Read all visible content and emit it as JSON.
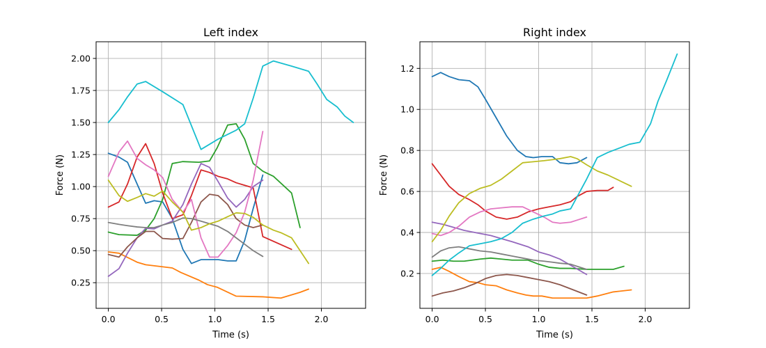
{
  "chart_data": [
    {
      "type": "line",
      "title": "Left index",
      "xlabel": "Time (s)",
      "ylabel": "Force (N)",
      "xlim": [
        -0.115,
        2.415
      ],
      "ylim": [
        0.05,
        2.13
      ],
      "xticks": [
        0.0,
        0.5,
        1.0,
        1.5,
        2.0
      ],
      "xtick_labels": [
        "0.0",
        "0.5",
        "1.0",
        "1.5",
        "2.0"
      ],
      "yticks": [
        0.25,
        0.5,
        0.75,
        1.0,
        1.25,
        1.5,
        1.75,
        2.0
      ],
      "ytick_labels": [
        "0.25",
        "0.50",
        "0.75",
        "1.00",
        "1.25",
        "1.50",
        "1.75",
        "2.00"
      ],
      "grid": true,
      "series": [
        {
          "color": "#1f77b4",
          "x": [
            0.0,
            0.1,
            0.18,
            0.27,
            0.35,
            0.43,
            0.51,
            0.6,
            0.7,
            0.78,
            0.87,
            0.95,
            1.03,
            1.12,
            1.2,
            1.28,
            1.36,
            1.45
          ],
          "y": [
            1.26,
            1.23,
            1.19,
            1.02,
            0.87,
            0.89,
            0.88,
            0.75,
            0.51,
            0.4,
            0.43,
            0.43,
            0.43,
            0.42,
            0.42,
            0.58,
            0.83,
            1.09
          ]
        },
        {
          "color": "#ff7f0e",
          "x": [
            0.0,
            0.1,
            0.27,
            0.35,
            0.5,
            0.6,
            0.68,
            0.85,
            0.93,
            1.02,
            1.2,
            1.45,
            1.62,
            1.8,
            1.88
          ],
          "y": [
            0.49,
            0.48,
            0.41,
            0.39,
            0.375,
            0.365,
            0.33,
            0.27,
            0.235,
            0.215,
            0.145,
            0.14,
            0.13,
            0.175,
            0.2
          ]
        },
        {
          "color": "#2ca02c",
          "x": [
            0.0,
            0.1,
            0.27,
            0.35,
            0.43,
            0.51,
            0.6,
            0.7,
            0.85,
            0.95,
            1.02,
            1.12,
            1.2,
            1.28,
            1.36,
            1.45,
            1.55,
            1.72,
            1.8
          ],
          "y": [
            0.645,
            0.625,
            0.62,
            0.66,
            0.75,
            0.9,
            1.18,
            1.195,
            1.19,
            1.2,
            1.3,
            1.48,
            1.49,
            1.37,
            1.18,
            1.12,
            1.08,
            0.95,
            0.68
          ]
        },
        {
          "color": "#d62728",
          "x": [
            0.0,
            0.1,
            0.18,
            0.27,
            0.35,
            0.43,
            0.51,
            0.6,
            0.7,
            0.78,
            0.87,
            0.95,
            1.03,
            1.12,
            1.2,
            1.28,
            1.36,
            1.45,
            1.72
          ],
          "y": [
            0.84,
            0.88,
            1.02,
            1.23,
            1.335,
            1.18,
            0.95,
            0.75,
            0.78,
            0.93,
            1.13,
            1.11,
            1.08,
            1.06,
            1.03,
            1.01,
            0.99,
            0.61,
            0.51
          ]
        },
        {
          "color": "#9467bd",
          "x": [
            0.0,
            0.1,
            0.18,
            0.27,
            0.35,
            0.43,
            0.51,
            0.6,
            0.7,
            0.78,
            0.87,
            0.95,
            1.03,
            1.12,
            1.2,
            1.28,
            1.36,
            1.45
          ],
          "y": [
            0.3,
            0.36,
            0.48,
            0.6,
            0.675,
            0.67,
            0.7,
            0.73,
            0.86,
            1.02,
            1.18,
            1.15,
            1.04,
            0.91,
            0.84,
            0.9,
            1.0,
            1.05
          ]
        },
        {
          "color": "#8c564b",
          "x": [
            0.0,
            0.1,
            0.18,
            0.27,
            0.35,
            0.43,
            0.51,
            0.6,
            0.7,
            0.78,
            0.87,
            0.95,
            1.03,
            1.12,
            1.2,
            1.28,
            1.36,
            1.45
          ],
          "y": [
            0.47,
            0.45,
            0.53,
            0.6,
            0.65,
            0.65,
            0.595,
            0.59,
            0.595,
            0.72,
            0.88,
            0.94,
            0.93,
            0.86,
            0.75,
            0.7,
            0.68,
            0.7
          ]
        },
        {
          "color": "#e377c2",
          "x": [
            0.0,
            0.1,
            0.18,
            0.27,
            0.35,
            0.43,
            0.51,
            0.6,
            0.7,
            0.78,
            0.87,
            0.95,
            1.03,
            1.12,
            1.2,
            1.28,
            1.36,
            1.45
          ],
          "y": [
            1.08,
            1.27,
            1.355,
            1.22,
            1.17,
            1.13,
            1.07,
            0.9,
            0.8,
            0.9,
            0.6,
            0.45,
            0.45,
            0.54,
            0.64,
            0.8,
            1.05,
            1.43
          ]
        },
        {
          "color": "#7f7f7f",
          "x": [
            0.0,
            0.1,
            0.18,
            0.27,
            0.35,
            0.43,
            0.51,
            0.6,
            0.7,
            0.78,
            0.87,
            0.95,
            1.03,
            1.12,
            1.2,
            1.28,
            1.36,
            1.45
          ],
          "y": [
            0.72,
            0.705,
            0.695,
            0.685,
            0.68,
            0.68,
            0.7,
            0.72,
            0.755,
            0.75,
            0.73,
            0.71,
            0.69,
            0.65,
            0.6,
            0.55,
            0.5,
            0.455
          ]
        },
        {
          "color": "#bcbd22",
          "x": [
            0.0,
            0.1,
            0.18,
            0.27,
            0.35,
            0.43,
            0.51,
            0.6,
            0.7,
            0.78,
            0.87,
            0.95,
            1.03,
            1.12,
            1.2,
            1.28,
            1.36,
            1.45,
            1.55,
            1.62,
            1.72,
            1.8,
            1.88
          ],
          "y": [
            1.05,
            0.93,
            0.885,
            0.915,
            0.945,
            0.925,
            0.965,
            0.88,
            0.8,
            0.66,
            0.68,
            0.71,
            0.73,
            0.765,
            0.795,
            0.79,
            0.76,
            0.7,
            0.66,
            0.64,
            0.6,
            0.5,
            0.4
          ]
        },
        {
          "color": "#17becf",
          "x": [
            0.0,
            0.1,
            0.18,
            0.27,
            0.35,
            0.51,
            0.7,
            0.87,
            1.03,
            1.2,
            1.28,
            1.36,
            1.45,
            1.55,
            1.72,
            1.88,
            1.96,
            2.05,
            2.15,
            2.22,
            2.3
          ],
          "y": [
            1.5,
            1.6,
            1.7,
            1.8,
            1.82,
            1.74,
            1.64,
            1.29,
            1.37,
            1.44,
            1.49,
            1.69,
            1.94,
            1.98,
            1.94,
            1.9,
            1.8,
            1.68,
            1.62,
            1.55,
            1.5
          ]
        }
      ]
    },
    {
      "type": "line",
      "title": "Right index",
      "xlabel": "Time (s)",
      "ylabel": "Force (N)",
      "xlim": [
        -0.115,
        2.415
      ],
      "ylim": [
        0.03,
        1.33
      ],
      "xticks": [
        0.0,
        0.5,
        1.0,
        1.5,
        2.0
      ],
      "xtick_labels": [
        "0.0",
        "0.5",
        "1.0",
        "1.5",
        "2.0"
      ],
      "yticks": [
        0.2,
        0.4,
        0.6,
        0.8,
        1.0,
        1.2
      ],
      "ytick_labels": [
        "0.2",
        "0.4",
        "0.6",
        "0.8",
        "1.0",
        "1.2"
      ],
      "grid": true,
      "series": [
        {
          "color": "#1f77b4",
          "x": [
            0.0,
            0.08,
            0.16,
            0.25,
            0.35,
            0.43,
            0.5,
            0.6,
            0.7,
            0.8,
            0.88,
            0.95,
            1.03,
            1.13,
            1.2,
            1.28,
            1.36,
            1.45
          ],
          "y": [
            1.16,
            1.18,
            1.16,
            1.145,
            1.14,
            1.11,
            1.05,
            0.96,
            0.87,
            0.8,
            0.77,
            0.765,
            0.77,
            0.77,
            0.74,
            0.735,
            0.74,
            0.765
          ]
        },
        {
          "color": "#ff7f0e",
          "x": [
            0.0,
            0.08,
            0.16,
            0.25,
            0.35,
            0.43,
            0.5,
            0.6,
            0.7,
            0.8,
            0.88,
            0.95,
            1.03,
            1.13,
            1.2,
            1.3,
            1.45,
            1.55,
            1.7,
            1.87
          ],
          "y": [
            0.22,
            0.23,
            0.21,
            0.185,
            0.16,
            0.155,
            0.145,
            0.14,
            0.12,
            0.105,
            0.095,
            0.09,
            0.09,
            0.08,
            0.08,
            0.08,
            0.08,
            0.09,
            0.11,
            0.12
          ]
        },
        {
          "color": "#2ca02c",
          "x": [
            0.0,
            0.1,
            0.2,
            0.3,
            0.45,
            0.55,
            0.65,
            0.75,
            0.9,
            1.0,
            1.1,
            1.2,
            1.3,
            1.45,
            1.55,
            1.7,
            1.8
          ],
          "y": [
            0.26,
            0.265,
            0.26,
            0.26,
            0.27,
            0.275,
            0.27,
            0.265,
            0.265,
            0.245,
            0.23,
            0.225,
            0.225,
            0.22,
            0.22,
            0.22,
            0.235
          ]
        },
        {
          "color": "#d62728",
          "x": [
            0.0,
            0.08,
            0.16,
            0.25,
            0.35,
            0.43,
            0.5,
            0.6,
            0.7,
            0.8,
            0.9,
            1.0,
            1.1,
            1.2,
            1.3,
            1.36,
            1.45,
            1.55,
            1.65,
            1.7
          ],
          "y": [
            0.735,
            0.68,
            0.625,
            0.585,
            0.56,
            0.535,
            0.505,
            0.475,
            0.465,
            0.475,
            0.5,
            0.515,
            0.525,
            0.535,
            0.55,
            0.575,
            0.6,
            0.605,
            0.605,
            0.62
          ]
        },
        {
          "color": "#9467bd",
          "x": [
            0.0,
            0.1,
            0.2,
            0.3,
            0.45,
            0.55,
            0.65,
            0.75,
            0.9,
            1.0,
            1.1,
            1.2,
            1.3,
            1.45
          ],
          "y": [
            0.45,
            0.44,
            0.425,
            0.41,
            0.395,
            0.385,
            0.37,
            0.355,
            0.33,
            0.305,
            0.29,
            0.27,
            0.24,
            0.195
          ]
        },
        {
          "color": "#8c564b",
          "x": [
            0.0,
            0.1,
            0.2,
            0.3,
            0.4,
            0.5,
            0.6,
            0.7,
            0.8,
            0.9,
            1.0,
            1.1,
            1.2,
            1.3,
            1.45
          ],
          "y": [
            0.09,
            0.105,
            0.115,
            0.13,
            0.15,
            0.175,
            0.19,
            0.195,
            0.19,
            0.18,
            0.17,
            0.16,
            0.145,
            0.125,
            0.095
          ]
        },
        {
          "color": "#e377c2",
          "x": [
            0.0,
            0.08,
            0.16,
            0.25,
            0.35,
            0.45,
            0.55,
            0.65,
            0.75,
            0.85,
            0.95,
            1.05,
            1.13,
            1.2,
            1.3,
            1.36,
            1.45
          ],
          "y": [
            0.395,
            0.385,
            0.4,
            0.43,
            0.475,
            0.5,
            0.515,
            0.52,
            0.525,
            0.525,
            0.5,
            0.475,
            0.45,
            0.445,
            0.45,
            0.46,
            0.475
          ]
        },
        {
          "color": "#7f7f7f",
          "x": [
            0.0,
            0.08,
            0.16,
            0.25,
            0.35,
            0.45,
            0.55,
            0.65,
            0.75,
            0.85,
            0.95,
            1.05,
            1.13,
            1.2,
            1.3,
            1.36,
            1.45
          ],
          "y": [
            0.28,
            0.31,
            0.325,
            0.33,
            0.32,
            0.31,
            0.305,
            0.295,
            0.285,
            0.275,
            0.265,
            0.26,
            0.255,
            0.25,
            0.245,
            0.235,
            0.22
          ]
        },
        {
          "color": "#bcbd22",
          "x": [
            0.0,
            0.08,
            0.16,
            0.25,
            0.35,
            0.45,
            0.55,
            0.65,
            0.75,
            0.85,
            0.95,
            1.05,
            1.13,
            1.2,
            1.3,
            1.36,
            1.45,
            1.55,
            1.65,
            1.75,
            1.87
          ],
          "y": [
            0.355,
            0.41,
            0.48,
            0.545,
            0.59,
            0.615,
            0.63,
            0.66,
            0.7,
            0.74,
            0.745,
            0.75,
            0.755,
            0.76,
            0.77,
            0.76,
            0.73,
            0.7,
            0.68,
            0.655,
            0.625
          ]
        },
        {
          "color": "#17becf",
          "x": [
            0.0,
            0.08,
            0.16,
            0.25,
            0.35,
            0.45,
            0.55,
            0.65,
            0.75,
            0.85,
            0.95,
            1.05,
            1.13,
            1.2,
            1.3,
            1.45,
            1.55,
            1.65,
            1.75,
            1.85,
            1.95,
            2.05,
            2.12,
            2.2,
            2.3
          ],
          "y": [
            0.19,
            0.225,
            0.265,
            0.3,
            0.335,
            0.345,
            0.355,
            0.37,
            0.4,
            0.445,
            0.465,
            0.48,
            0.49,
            0.505,
            0.515,
            0.66,
            0.765,
            0.79,
            0.81,
            0.83,
            0.84,
            0.93,
            1.04,
            1.14,
            1.27
          ]
        }
      ]
    }
  ]
}
